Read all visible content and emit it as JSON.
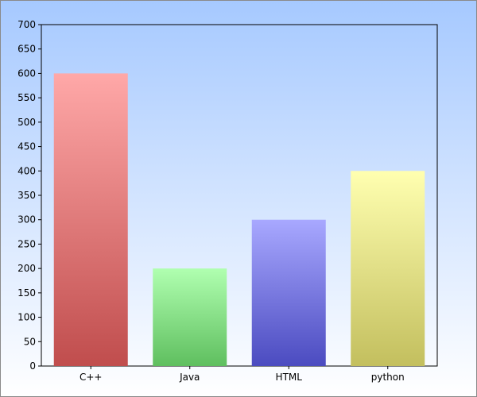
{
  "chart_data": {
    "type": "bar",
    "title": "",
    "xlabel": "",
    "ylabel": "",
    "categories": [
      "C++",
      "Java",
      "HTML",
      "python"
    ],
    "values": [
      600,
      200,
      300,
      400
    ],
    "ylim": [
      0,
      700
    ],
    "yticks": [
      0,
      50,
      100,
      150,
      200,
      250,
      300,
      350,
      400,
      450,
      500,
      550,
      600,
      650,
      700
    ],
    "grid": false,
    "legend": "none",
    "colors": {
      "background_top": "#a6c9ff",
      "background_bottom": "#ffffff",
      "bars": [
        {
          "top": "#ffa8a8",
          "bottom": "#c04d4d"
        },
        {
          "top": "#b0ffb0",
          "bottom": "#5fbf5f"
        },
        {
          "top": "#a8a8ff",
          "bottom": "#4b4bc0"
        },
        {
          "top": "#ffffb0",
          "bottom": "#c3bf5e"
        }
      ]
    }
  }
}
